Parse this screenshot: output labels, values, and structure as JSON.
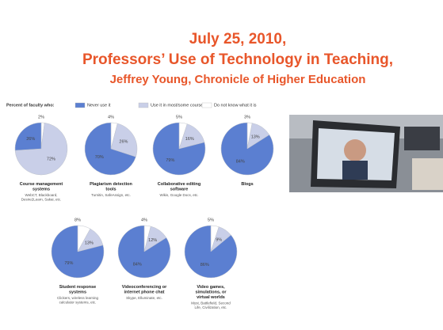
{
  "header": {
    "lines": [
      "July 25, 2010,",
      "Professors’ Use of Technology in Teaching,",
      "Jeffrey Young, Chronicle of Higher Education"
    ]
  },
  "legend": {
    "title": "Percent of faculty who:",
    "labels": [
      "Never use it",
      "Use it in most/some courses",
      "Do not know what it is"
    ],
    "colors": [
      "#5b7fd1",
      "#c9cfe8",
      "#ffffff"
    ]
  },
  "chart_data": [
    {
      "type": "pie",
      "title": "Course management systems",
      "subtitle": "WebCT, Blackboard, Desire2Learn, Sakai, etc.",
      "values": [
        26,
        72,
        2
      ],
      "value_labels": [
        "26%",
        "72%",
        "2%"
      ]
    },
    {
      "type": "pie",
      "title": "Plagiarism detection tools",
      "subtitle": "Turnitin, SafeAssign, etc.",
      "values": [
        70,
        26,
        4
      ],
      "value_labels": [
        "70%",
        "26%",
        "4%"
      ]
    },
    {
      "type": "pie",
      "title": "Collaborative editing software",
      "subtitle": "Wikis, Google Docs, etc.",
      "values": [
        79,
        16,
        5
      ],
      "value_labels": [
        "79%",
        "16%",
        "5%"
      ]
    },
    {
      "type": "pie",
      "title": "Blogs",
      "subtitle": "",
      "values": [
        84,
        13,
        3
      ],
      "value_labels": [
        "84%",
        "13%",
        "3%"
      ]
    },
    {
      "type": "pie",
      "title": "Student response systems",
      "subtitle": "Clickers, wireless learning calculator systems, etc.",
      "values": [
        79,
        13,
        8
      ],
      "value_labels": [
        "79%",
        "13%",
        "8%"
      ]
    },
    {
      "type": "pie",
      "title": "Videoconferencing or internet phone chat",
      "subtitle": "Skype, Elluminate, etc.",
      "values": [
        84,
        12,
        4
      ],
      "value_labels": [
        "84%",
        "12%",
        "4%"
      ]
    },
    {
      "type": "pie",
      "title": "Video games, simulations, or virtual worlds",
      "subtitle": "Myst, Battlefield, Second Life, Civilization, etc.",
      "values": [
        86,
        9,
        5
      ],
      "value_labels": [
        "86%",
        "9%",
        "5%"
      ]
    }
  ]
}
